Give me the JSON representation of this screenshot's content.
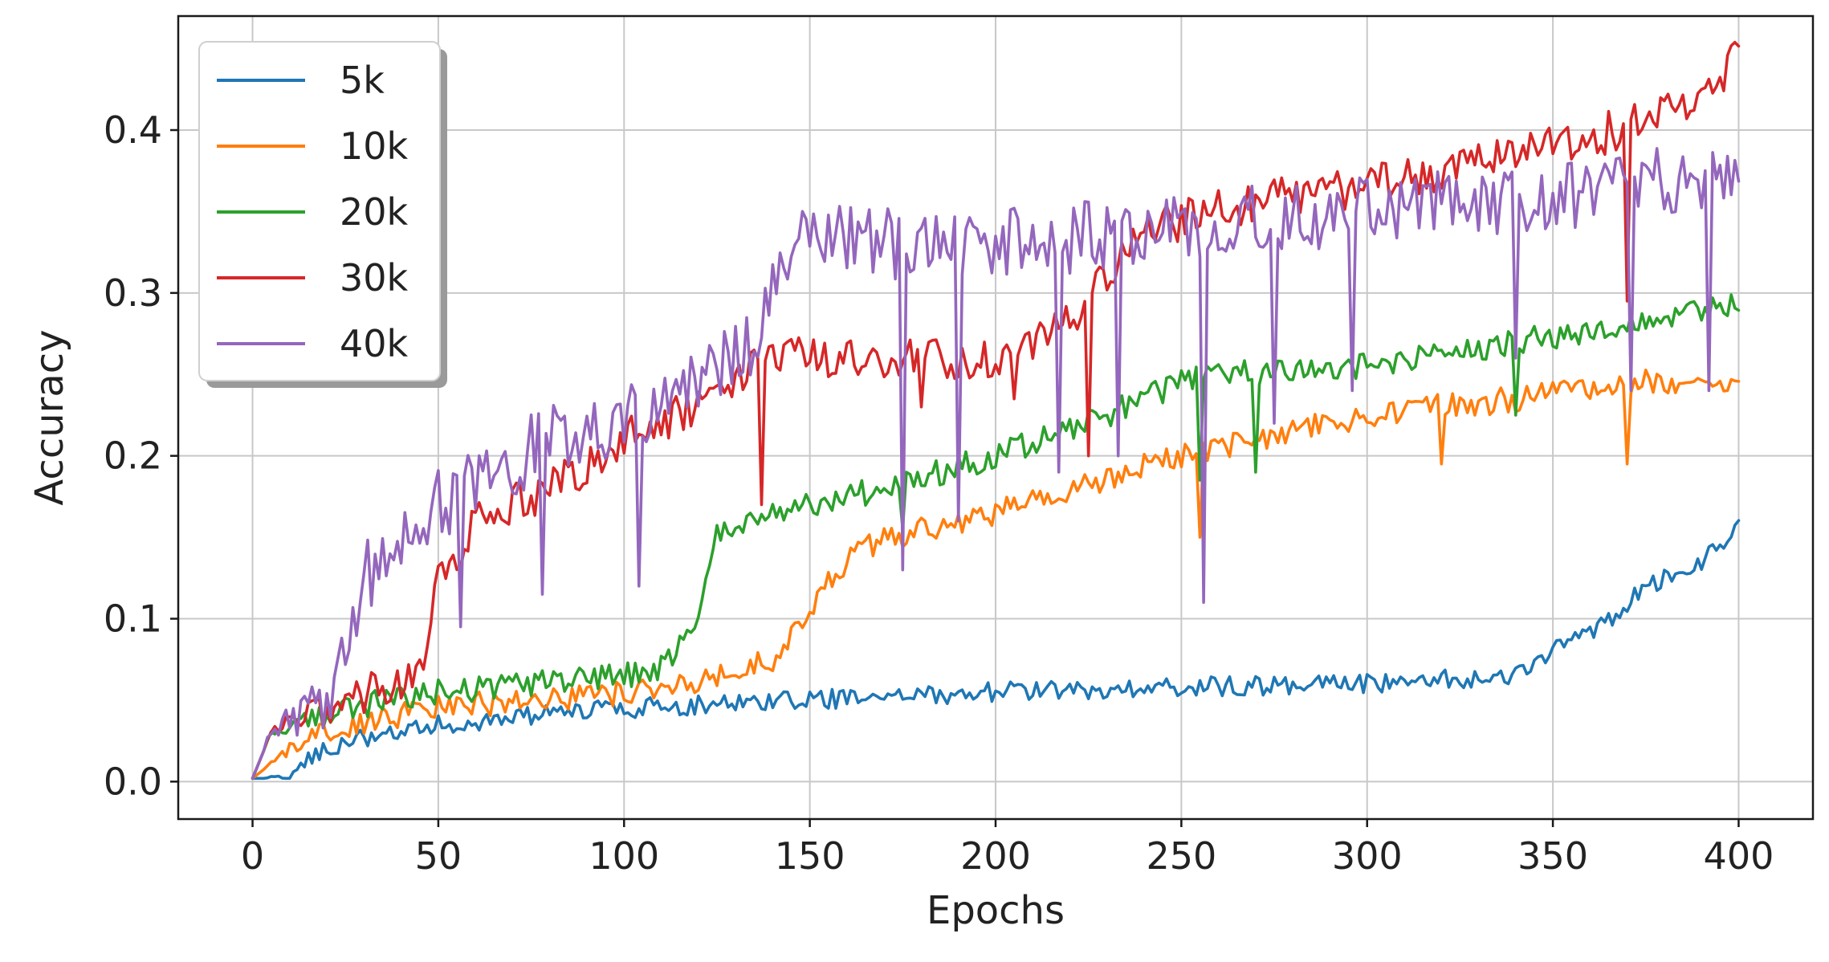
{
  "chart_data": {
    "type": "line",
    "title": "",
    "xlabel": "Epochs",
    "ylabel": "Accuracy",
    "xlim": [
      -20,
      420
    ],
    "ylim": [
      -0.023,
      0.47
    ],
    "xticks": [
      0,
      50,
      100,
      150,
      200,
      250,
      300,
      350,
      400
    ],
    "yticks": [
      0.0,
      0.1,
      0.2,
      0.3,
      0.4
    ],
    "xtick_labels": [
      "0",
      "50",
      "100",
      "150",
      "200",
      "250",
      "300",
      "350",
      "400"
    ],
    "ytick_labels": [
      "0.0",
      "0.1",
      "0.2",
      "0.3",
      "0.4"
    ],
    "grid": true,
    "legend": "top-left",
    "series": [
      {
        "name": "5k",
        "color": "#1f77b4",
        "noise": 0.006,
        "dips": [],
        "points": [
          [
            0,
            0.002
          ],
          [
            10,
            0.002
          ],
          [
            15,
            0.015
          ],
          [
            25,
            0.025
          ],
          [
            50,
            0.035
          ],
          [
            100,
            0.045
          ],
          [
            150,
            0.05
          ],
          [
            200,
            0.055
          ],
          [
            250,
            0.058
          ],
          [
            300,
            0.06
          ],
          [
            340,
            0.065
          ],
          [
            350,
            0.08
          ],
          [
            360,
            0.09
          ],
          [
            370,
            0.11
          ],
          [
            380,
            0.125
          ],
          [
            390,
            0.135
          ],
          [
            400,
            0.155
          ]
        ]
      },
      {
        "name": "10k",
        "color": "#ff7f0e",
        "noise": 0.008,
        "dips": [
          [
            255,
            0.15
          ],
          [
            370,
            0.195
          ],
          [
            320,
            0.195
          ]
        ],
        "points": [
          [
            0,
            0.002
          ],
          [
            10,
            0.02
          ],
          [
            25,
            0.035
          ],
          [
            50,
            0.045
          ],
          [
            100,
            0.055
          ],
          [
            120,
            0.06
          ],
          [
            140,
            0.075
          ],
          [
            150,
            0.1
          ],
          [
            155,
            0.125
          ],
          [
            165,
            0.145
          ],
          [
            180,
            0.155
          ],
          [
            200,
            0.165
          ],
          [
            220,
            0.18
          ],
          [
            250,
            0.2
          ],
          [
            280,
            0.215
          ],
          [
            300,
            0.225
          ],
          [
            340,
            0.235
          ],
          [
            370,
            0.245
          ],
          [
            400,
            0.245
          ]
        ]
      },
      {
        "name": "20k",
        "color": "#2ca02c",
        "noise": 0.008,
        "dips": [
          [
            175,
            0.155
          ],
          [
            255,
            0.185
          ],
          [
            270,
            0.19
          ],
          [
            340,
            0.225
          ]
        ],
        "points": [
          [
            0,
            0.002
          ],
          [
            5,
            0.03
          ],
          [
            25,
            0.045
          ],
          [
            50,
            0.055
          ],
          [
            100,
            0.065
          ],
          [
            110,
            0.07
          ],
          [
            120,
            0.1
          ],
          [
            125,
            0.15
          ],
          [
            135,
            0.16
          ],
          [
            150,
            0.17
          ],
          [
            170,
            0.18
          ],
          [
            200,
            0.2
          ],
          [
            225,
            0.22
          ],
          [
            245,
            0.24
          ],
          [
            255,
            0.25
          ],
          [
            300,
            0.255
          ],
          [
            340,
            0.27
          ],
          [
            370,
            0.28
          ],
          [
            390,
            0.29
          ],
          [
            400,
            0.295
          ]
        ]
      },
      {
        "name": "30k",
        "color": "#d62728",
        "noise": 0.013,
        "dips": [
          [
            137,
            0.17
          ],
          [
            225,
            0.2
          ],
          [
            370,
            0.295
          ],
          [
            205,
            0.235
          ],
          [
            180,
            0.23
          ]
        ],
        "points": [
          [
            0,
            0.002
          ],
          [
            5,
            0.03
          ],
          [
            25,
            0.05
          ],
          [
            45,
            0.065
          ],
          [
            50,
            0.12
          ],
          [
            60,
            0.16
          ],
          [
            80,
            0.18
          ],
          [
            100,
            0.21
          ],
          [
            120,
            0.23
          ],
          [
            140,
            0.26
          ],
          [
            160,
            0.26
          ],
          [
            180,
            0.26
          ],
          [
            200,
            0.26
          ],
          [
            220,
            0.28
          ],
          [
            240,
            0.34
          ],
          [
            260,
            0.35
          ],
          [
            280,
            0.36
          ],
          [
            300,
            0.365
          ],
          [
            320,
            0.375
          ],
          [
            340,
            0.385
          ],
          [
            360,
            0.395
          ],
          [
            380,
            0.41
          ],
          [
            395,
            0.43
          ],
          [
            400,
            0.445
          ]
        ]
      },
      {
        "name": "40k",
        "color": "#9467bd",
        "noise": 0.022,
        "dips": [
          [
            256,
            0.11
          ],
          [
            175,
            0.13
          ],
          [
            78,
            0.115
          ],
          [
            104,
            0.12
          ],
          [
            56,
            0.095
          ],
          [
            190,
            0.16
          ],
          [
            217,
            0.19
          ],
          [
            233,
            0.2
          ],
          [
            275,
            0.22
          ],
          [
            296,
            0.24
          ],
          [
            340,
            0.26
          ],
          [
            371,
            0.24
          ],
          [
            392,
            0.24
          ]
        ],
        "points": [
          [
            0,
            0.002
          ],
          [
            5,
            0.03
          ],
          [
            20,
            0.05
          ],
          [
            27,
            0.09
          ],
          [
            30,
            0.125
          ],
          [
            45,
            0.15
          ],
          [
            50,
            0.17
          ],
          [
            80,
            0.21
          ],
          [
            110,
            0.23
          ],
          [
            135,
            0.27
          ],
          [
            140,
            0.31
          ],
          [
            150,
            0.34
          ],
          [
            170,
            0.33
          ],
          [
            200,
            0.33
          ],
          [
            250,
            0.34
          ],
          [
            300,
            0.35
          ],
          [
            350,
            0.36
          ],
          [
            400,
            0.375
          ]
        ]
      }
    ]
  }
}
